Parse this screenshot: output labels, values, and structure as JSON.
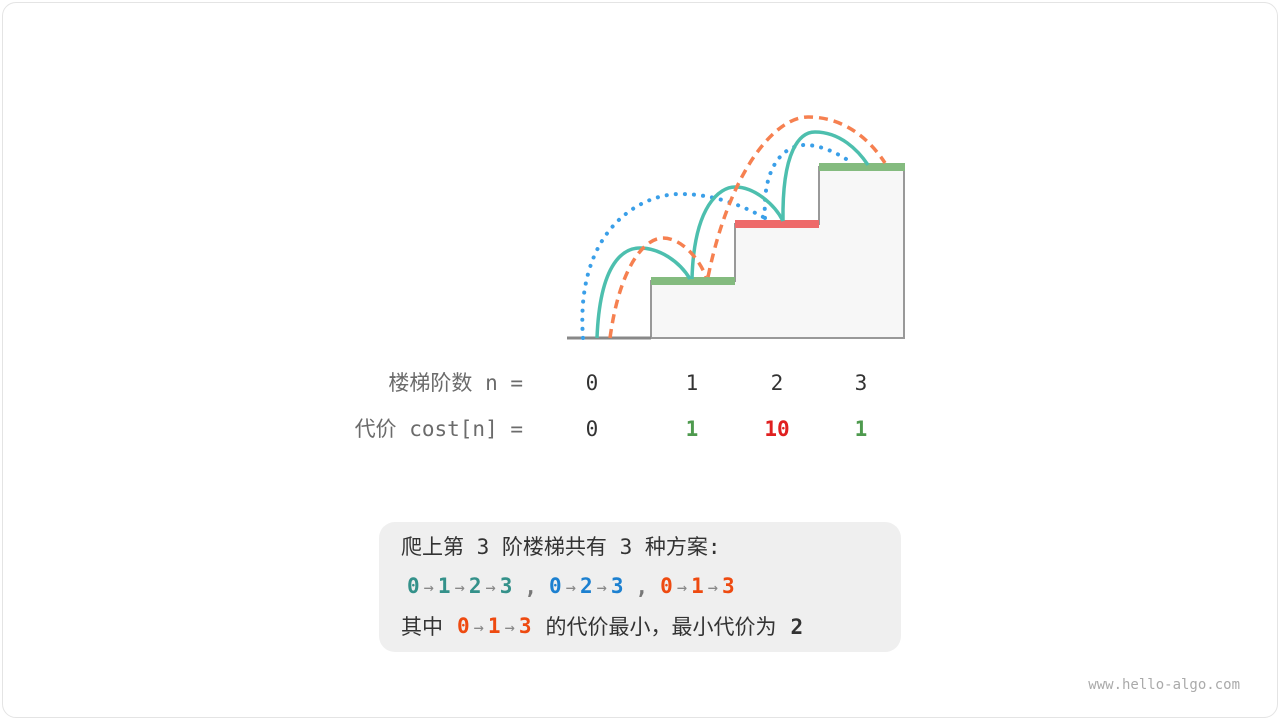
{
  "steps": {
    "label_n": "楼梯阶数 n =",
    "label_cost": "代价 cost[n] =",
    "n": [
      "0",
      "1",
      "2",
      "3"
    ],
    "cost": [
      "0",
      "1",
      "10",
      "1"
    ],
    "cost_colors": [
      "#333333",
      "#4e9a4e",
      "#e02020",
      "#4e9a4e"
    ],
    "step_colors": [
      "#888888",
      "#84bb7f",
      "#ee6a6a",
      "#84bb7f"
    ]
  },
  "paths_colors": {
    "teal": "#4dbfae",
    "blue": "#3a9fe8",
    "orange": "#f68050"
  },
  "summary": {
    "line1": "爬上第 3 阶楼梯共有 3 种方案:",
    "plans": [
      {
        "nodes": [
          "0",
          "1",
          "2",
          "3"
        ],
        "color": "#34918a"
      },
      {
        "nodes": [
          "0",
          "2",
          "3"
        ],
        "color": "#1c80d0"
      },
      {
        "nodes": [
          "0",
          "1",
          "3"
        ],
        "color": "#ee4a10"
      }
    ],
    "separator": ",",
    "arrow": "→",
    "line3_prefix": "其中",
    "line3_middle": "的代价最小，最小代价为",
    "min_cost": "2"
  },
  "watermark": "www.hello-algo.com"
}
